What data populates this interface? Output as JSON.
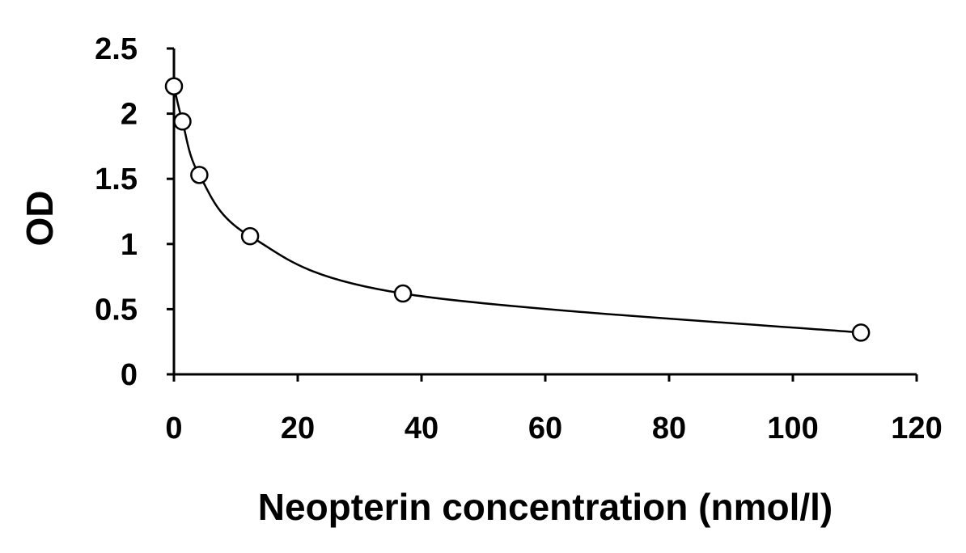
{
  "chart_data": {
    "type": "scatter",
    "xlabel": "Neopterin concentration (nmol/l)",
    "ylabel": "OD",
    "xlim": [
      0,
      120
    ],
    "ylim": [
      0,
      2.5
    ],
    "xticks": [
      0,
      20,
      40,
      60,
      80,
      100,
      120
    ],
    "yticks": [
      0,
      0.5,
      1,
      1.5,
      2,
      2.5
    ],
    "xtick_labels": [
      "0",
      "20",
      "40",
      "60",
      "80",
      "100",
      "120"
    ],
    "ytick_labels": [
      "0",
      "0.5",
      "1",
      "1.5",
      "2",
      "2.5"
    ],
    "grid": false,
    "smooth_curve": true,
    "marker": "open-circle",
    "series": [
      {
        "x": [
          0,
          1.37,
          4.1,
          12.3,
          37,
          111
        ],
        "y": [
          2.21,
          1.94,
          1.53,
          1.06,
          0.62,
          0.32
        ]
      }
    ]
  }
}
